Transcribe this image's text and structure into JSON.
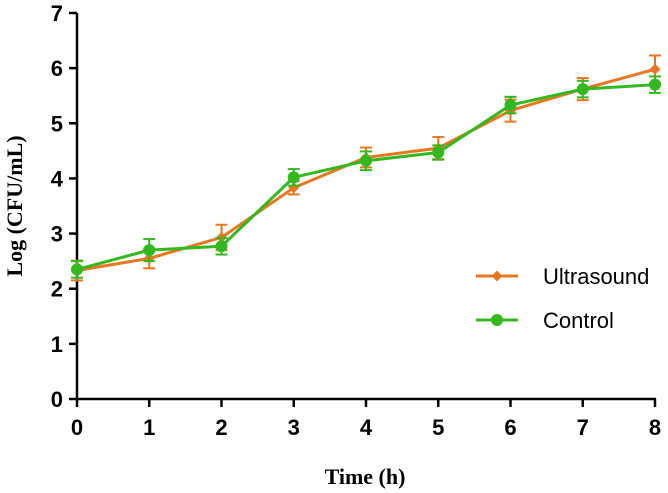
{
  "chart_data": {
    "type": "line",
    "xlabel": "Time (h)",
    "ylabel": "Log (CFU/mL)",
    "xlim": [
      0,
      8
    ],
    "ylim": [
      0,
      7
    ],
    "xticks": [
      "0",
      "1",
      "2",
      "3",
      "4",
      "5",
      "6",
      "7",
      "8"
    ],
    "yticks": [
      "0",
      "1",
      "2",
      "3",
      "4",
      "5",
      "6",
      "7"
    ],
    "x": [
      0,
      1,
      2,
      3,
      4,
      5,
      6,
      7,
      8
    ],
    "series": [
      {
        "name": "Ultrasound",
        "color": "#E87722",
        "marker": "diamond",
        "values": [
          2.33,
          2.55,
          2.93,
          3.83,
          4.38,
          4.55,
          5.23,
          5.62,
          5.98
        ],
        "errors": [
          0.18,
          0.18,
          0.23,
          0.12,
          0.18,
          0.2,
          0.2,
          0.2,
          0.25
        ]
      },
      {
        "name": "Control",
        "color": "#33B820",
        "marker": "circle",
        "values": [
          2.35,
          2.7,
          2.77,
          4.02,
          4.32,
          4.47,
          5.33,
          5.62,
          5.7
        ],
        "errors": [
          0.15,
          0.2,
          0.15,
          0.15,
          0.17,
          0.13,
          0.15,
          0.15,
          0.15
        ]
      }
    ],
    "legend_position": "right-middle"
  }
}
